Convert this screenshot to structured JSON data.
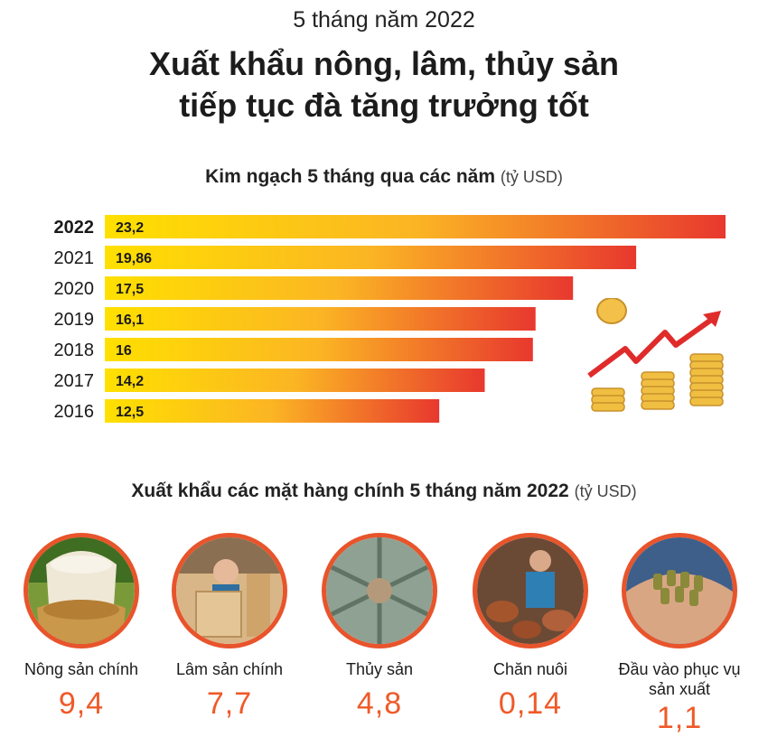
{
  "header": {
    "kicker": "5 tháng năm 2022",
    "headline_line1": "Xuất khẩu nông, lâm, thủy sản",
    "headline_line2": "tiếp tục đà tăng trưởng tốt"
  },
  "section1": {
    "title": "Kim ngạch 5 tháng qua các năm",
    "unit": "(tỷ USD)"
  },
  "section2": {
    "title": "Xuất khẩu các mặt hàng chính 5 tháng năm 2022",
    "unit": "(tỷ USD)"
  },
  "chart_data": {
    "type": "bar",
    "orientation": "horizontal",
    "title": "Kim ngạch 5 tháng qua các năm",
    "unit": "(tỷ USD)",
    "categories": [
      "2022",
      "2021",
      "2020",
      "2019",
      "2018",
      "2017",
      "2016"
    ],
    "values": [
      23.2,
      19.86,
      17.5,
      16.1,
      16,
      14.2,
      12.5
    ],
    "value_labels": [
      "23,2",
      "19,86",
      "17,5",
      "16,1",
      "16",
      "14,2",
      "12,5"
    ],
    "highlight": "2022",
    "gradient": [
      "#ffdf00",
      "#e8382e"
    ]
  },
  "products": [
    {
      "name": "Nông sản chính",
      "value": "9,4",
      "icon": "rice-icon"
    },
    {
      "name": "Lâm sản chính",
      "value": "7,7",
      "icon": "wood-icon"
    },
    {
      "name": "Thủy sản",
      "value": "4,8",
      "icon": "fish-icon"
    },
    {
      "name": "Chăn nuôi",
      "value": "0,14",
      "icon": "livestock-icon"
    },
    {
      "name": "Đầu vào phục vụ sản xuất",
      "value": "1,1",
      "icon": "feed-pellet-icon"
    }
  ],
  "colors": {
    "accent": "#ef5a28",
    "arrow": "#e02b2b",
    "coin": "#e8b53a"
  }
}
